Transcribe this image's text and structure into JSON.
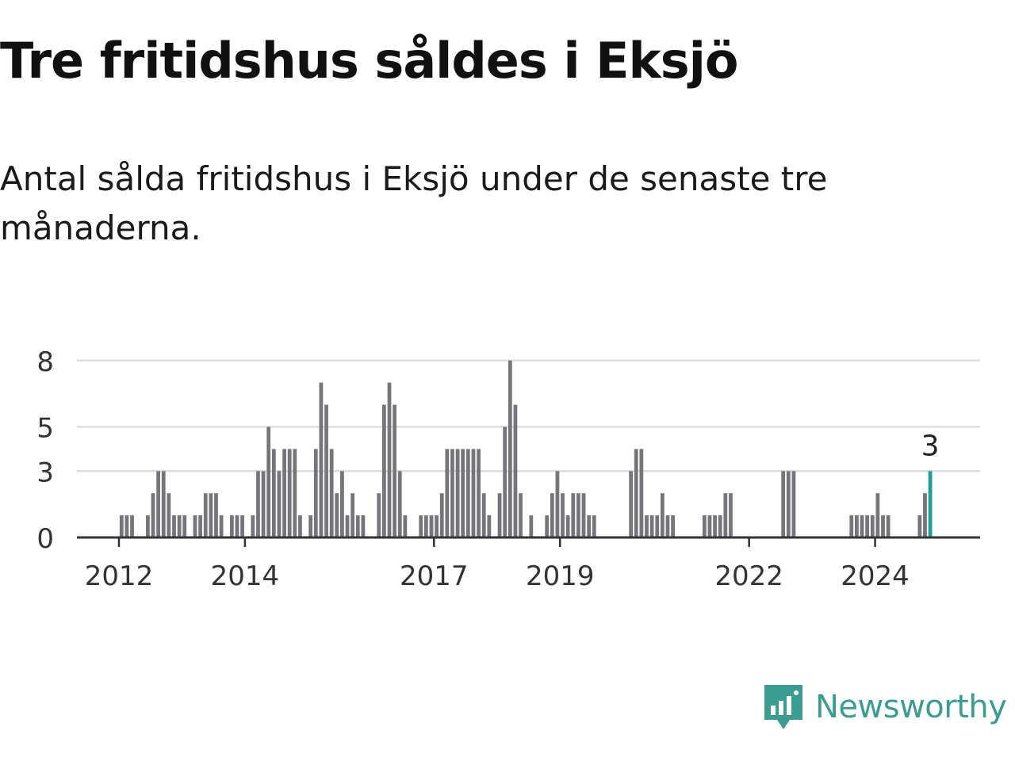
{
  "title": "Tre fritidshus såldes i Eksjö",
  "subtitle": "Antal sålda fritidshus i Eksjö under de senaste tre månaderna.",
  "brand": {
    "name": "Newsworthy",
    "color": "#3b9d91",
    "icon": "newsworthy-logo-icon"
  },
  "colors": {
    "bar": "#76757b",
    "highlight": "#1f9e94",
    "grid": "#dddddd",
    "axis": "#333333"
  },
  "chart_data": {
    "type": "bar",
    "title": "Tre fritidshus såldes i Eksjö",
    "subtitle": "Antal sålda fritidshus i Eksjö under de senaste tre månaderna.",
    "xlabel": "",
    "ylabel": "",
    "ylim": [
      0,
      8.5
    ],
    "yticks": [
      0,
      3,
      5,
      8
    ],
    "x_range": [
      "2011-05",
      "2025-09"
    ],
    "xticks": [
      {
        "label": "2012",
        "date": "2012-01"
      },
      {
        "label": "2014",
        "date": "2014-01"
      },
      {
        "label": "2017",
        "date": "2017-01"
      },
      {
        "label": "2019",
        "date": "2019-01"
      },
      {
        "label": "2022",
        "date": "2022-01"
      },
      {
        "label": "2024",
        "date": "2024-01"
      }
    ],
    "grid": true,
    "legend": "none",
    "x_start": "2011-12",
    "values": [
      0,
      1,
      1,
      1,
      0,
      0,
      1,
      2,
      3,
      3,
      2,
      1,
      1,
      1,
      0,
      1,
      1,
      2,
      2,
      2,
      1,
      0,
      1,
      1,
      1,
      0,
      1,
      3,
      3,
      5,
      4,
      3,
      4,
      4,
      4,
      1,
      0,
      1,
      4,
      7,
      6,
      4,
      2,
      3,
      1,
      2,
      1,
      1,
      0,
      0,
      2,
      6,
      7,
      6,
      3,
      1,
      0,
      0,
      1,
      1,
      1,
      1,
      2,
      4,
      4,
      4,
      4,
      4,
      4,
      4,
      2,
      1,
      0,
      2,
      5,
      8,
      6,
      2,
      0,
      1,
      0,
      0,
      1,
      2,
      3,
      2,
      1,
      2,
      2,
      2,
      1,
      1,
      0,
      0,
      0,
      0,
      0,
      0,
      3,
      4,
      4,
      1,
      1,
      1,
      2,
      1,
      1,
      0,
      0,
      0,
      0,
      0,
      1,
      1,
      1,
      1,
      2,
      2,
      0,
      0,
      0,
      0,
      0,
      0,
      0,
      0,
      0,
      3,
      3,
      3,
      0,
      0,
      0,
      0,
      0,
      0,
      0,
      0,
      0,
      0,
      1,
      1,
      1,
      1,
      1,
      2,
      1,
      1,
      0,
      0,
      0,
      0,
      0,
      1,
      2,
      3
    ],
    "highlight_last": true,
    "annotation": {
      "text": "3",
      "target": "last"
    }
  }
}
